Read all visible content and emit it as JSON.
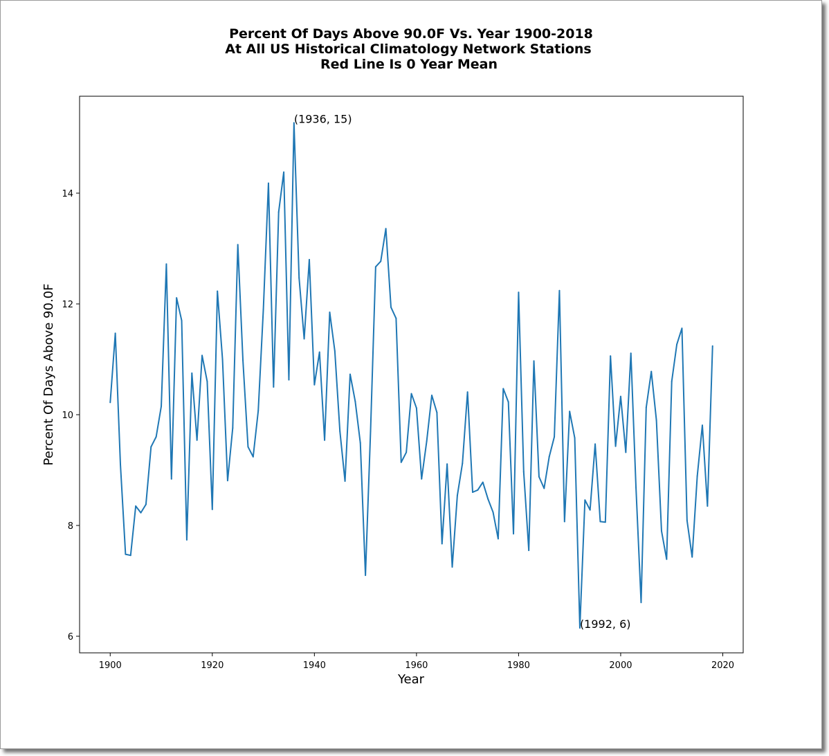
{
  "chart_data": {
    "type": "line",
    "title_lines": [
      "Percent Of Days Above 90.0F Vs. Year 1900-2018",
      "At All US Historical Climatology Network Stations",
      "Red Line Is 0 Year Mean"
    ],
    "xlabel": "Year",
    "ylabel": "Percent Of Days Above 90.0F",
    "xlim": [
      1894,
      2024
    ],
    "ylim": [
      5.7,
      15.75
    ],
    "xticks": [
      1900,
      1920,
      1940,
      1960,
      1980,
      2000,
      2020
    ],
    "yticks": [
      6,
      8,
      10,
      12,
      14
    ],
    "grid": false,
    "line_color": "#1f77b4",
    "series": [
      {
        "x": [
          1900,
          1901,
          1902,
          1903,
          1904,
          1905,
          1906,
          1907,
          1908,
          1909,
          1910,
          1911,
          1912,
          1913,
          1914,
          1915,
          1916,
          1917,
          1918,
          1919,
          1920,
          1921,
          1922,
          1923,
          1924,
          1925,
          1926,
          1927,
          1928,
          1929,
          1930,
          1931,
          1932,
          1933,
          1934,
          1935,
          1936,
          1937,
          1938,
          1939,
          1940,
          1941,
          1942,
          1943,
          1944,
          1945,
          1946,
          1947,
          1948,
          1949,
          1950,
          1951,
          1952,
          1953,
          1954,
          1955,
          1956,
          1957,
          1958,
          1959,
          1960,
          1961,
          1962,
          1963,
          1964,
          1965,
          1966,
          1967,
          1968,
          1969,
          1970,
          1971,
          1972,
          1973,
          1974,
          1975,
          1976,
          1977,
          1978,
          1979,
          1980,
          1981,
          1982,
          1983,
          1984,
          1985,
          1986,
          1987,
          1988,
          1989,
          1990,
          1991,
          1992,
          1993,
          1994,
          1995,
          1996,
          1997,
          1998,
          1999,
          2000,
          2001,
          2002,
          2003,
          2004,
          2005,
          2006,
          2007,
          2008,
          2009,
          2010,
          2011,
          2012,
          2013,
          2014,
          2015,
          2016,
          2017,
          2018
        ],
        "values": [
          10.22,
          11.47,
          9.1,
          7.48,
          7.46,
          8.35,
          8.23,
          8.38,
          9.42,
          9.6,
          10.15,
          12.72,
          8.84,
          12.11,
          11.7,
          7.74,
          10.75,
          9.54,
          11.07,
          10.6,
          8.29,
          12.23,
          11.0,
          8.81,
          9.76,
          13.07,
          10.98,
          9.42,
          9.24,
          10.07,
          11.9,
          14.18,
          10.5,
          13.66,
          14.38,
          10.63,
          15.27,
          12.47,
          11.37,
          12.8,
          10.54,
          11.13,
          9.54,
          11.85,
          11.15,
          9.7,
          8.8,
          10.73,
          10.24,
          9.49,
          7.1,
          9.7,
          12.67,
          12.77,
          13.36,
          11.94,
          11.74,
          9.14,
          9.32,
          10.38,
          10.12,
          8.84,
          9.52,
          10.35,
          10.04,
          7.67,
          9.11,
          7.25,
          8.54,
          9.12,
          10.41,
          8.6,
          8.64,
          8.78,
          8.48,
          8.24,
          7.76,
          10.47,
          10.23,
          7.85,
          12.21,
          8.97,
          7.55,
          10.97,
          8.88,
          8.67,
          9.24,
          9.6,
          12.24,
          8.07,
          10.06,
          9.58,
          6.15,
          8.46,
          8.28,
          9.47,
          8.07,
          8.06,
          11.06,
          9.43,
          10.33,
          9.32,
          11.11,
          8.68,
          6.61,
          10.13,
          10.78,
          9.9,
          7.9,
          7.39,
          10.6,
          11.27,
          11.56,
          8.09,
          7.43,
          8.89,
          9.81,
          8.35,
          11.24
        ]
      }
    ],
    "annotations": [
      {
        "x": 1936,
        "y": 15.27,
        "text": "(1936, 15)"
      },
      {
        "x": 1992,
        "y": 6.15,
        "text": "(1992, 6)"
      }
    ]
  }
}
